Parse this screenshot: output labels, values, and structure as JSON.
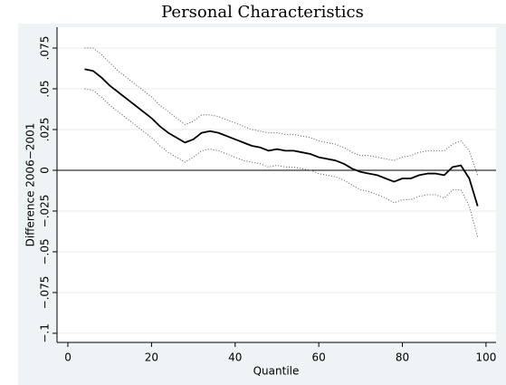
{
  "chart_data": {
    "type": "line",
    "title": "Personal Characteristics",
    "x_label": "Quantile",
    "y_label": "Difference 2006−2001",
    "x": [
      4,
      6,
      8,
      10,
      12,
      14,
      16,
      18,
      20,
      22,
      24,
      26,
      28,
      30,
      32,
      34,
      36,
      38,
      40,
      42,
      44,
      46,
      48,
      50,
      52,
      54,
      56,
      58,
      60,
      62,
      64,
      66,
      68,
      70,
      72,
      74,
      76,
      78,
      80,
      82,
      84,
      86,
      88,
      90,
      92,
      94,
      96,
      98
    ],
    "series": [
      {
        "color": "#000000",
        "style": "solid",
        "values": [
          0.062,
          0.061,
          0.057,
          0.052,
          0.048,
          0.044,
          0.04,
          0.036,
          0.032,
          0.027,
          0.023,
          0.02,
          0.017,
          0.019,
          0.023,
          0.024,
          0.023,
          0.021,
          0.019,
          0.017,
          0.015,
          0.014,
          0.012,
          0.013,
          0.012,
          0.012,
          0.011,
          0.01,
          0.008,
          0.007,
          0.006,
          0.004,
          0.001,
          -0.001,
          -0.002,
          -0.003,
          -0.005,
          -0.007,
          -0.005,
          -0.005,
          -0.003,
          -0.002,
          -0.002,
          -0.003,
          0.002,
          0.003,
          -0.005,
          -0.022
        ]
      },
      {
        "color": "#555555",
        "style": "dotted",
        "values": [
          0.075,
          0.075,
          0.071,
          0.066,
          0.061,
          0.057,
          0.053,
          0.049,
          0.045,
          0.04,
          0.036,
          0.032,
          0.028,
          0.03,
          0.034,
          0.034,
          0.033,
          0.031,
          0.029,
          0.027,
          0.025,
          0.024,
          0.023,
          0.023,
          0.022,
          0.022,
          0.021,
          0.02,
          0.018,
          0.017,
          0.016,
          0.014,
          0.011,
          0.009,
          0.009,
          0.008,
          0.007,
          0.006,
          0.008,
          0.009,
          0.011,
          0.012,
          0.012,
          0.012,
          0.016,
          0.018,
          0.012,
          -0.003
        ]
      },
      {
        "color": "#555555",
        "style": "dotted",
        "values": [
          0.05,
          0.049,
          0.045,
          0.04,
          0.036,
          0.032,
          0.028,
          0.024,
          0.02,
          0.015,
          0.011,
          0.008,
          0.005,
          0.008,
          0.012,
          0.013,
          0.012,
          0.01,
          0.008,
          0.006,
          0.005,
          0.004,
          0.002,
          0.003,
          0.002,
          0.002,
          0.001,
          0.0,
          -0.002,
          -0.003,
          -0.004,
          -0.006,
          -0.009,
          -0.012,
          -0.013,
          -0.015,
          -0.017,
          -0.02,
          -0.018,
          -0.018,
          -0.016,
          -0.015,
          -0.015,
          -0.017,
          -0.012,
          -0.012,
          -0.022,
          -0.041
        ]
      }
    ],
    "xlim": [
      -2.6,
      102.4
    ],
    "ylim": [
      -0.1056,
      0.0878
    ],
    "xticks": [
      0,
      20,
      40,
      60,
      80,
      100
    ],
    "yticks": [
      {
        "value": 0.075,
        "label": ".075"
      },
      {
        "value": 0.05,
        "label": ".05"
      },
      {
        "value": 0.025,
        "label": ".025"
      },
      0,
      {
        "value": -0.025,
        "label": "−.025"
      },
      {
        "value": -0.05,
        "label": "−.05"
      },
      {
        "value": -0.075,
        "label": "−.075"
      },
      {
        "value": -0.1,
        "label": "−.1"
      }
    ],
    "grid": true,
    "zero_line": true
  }
}
